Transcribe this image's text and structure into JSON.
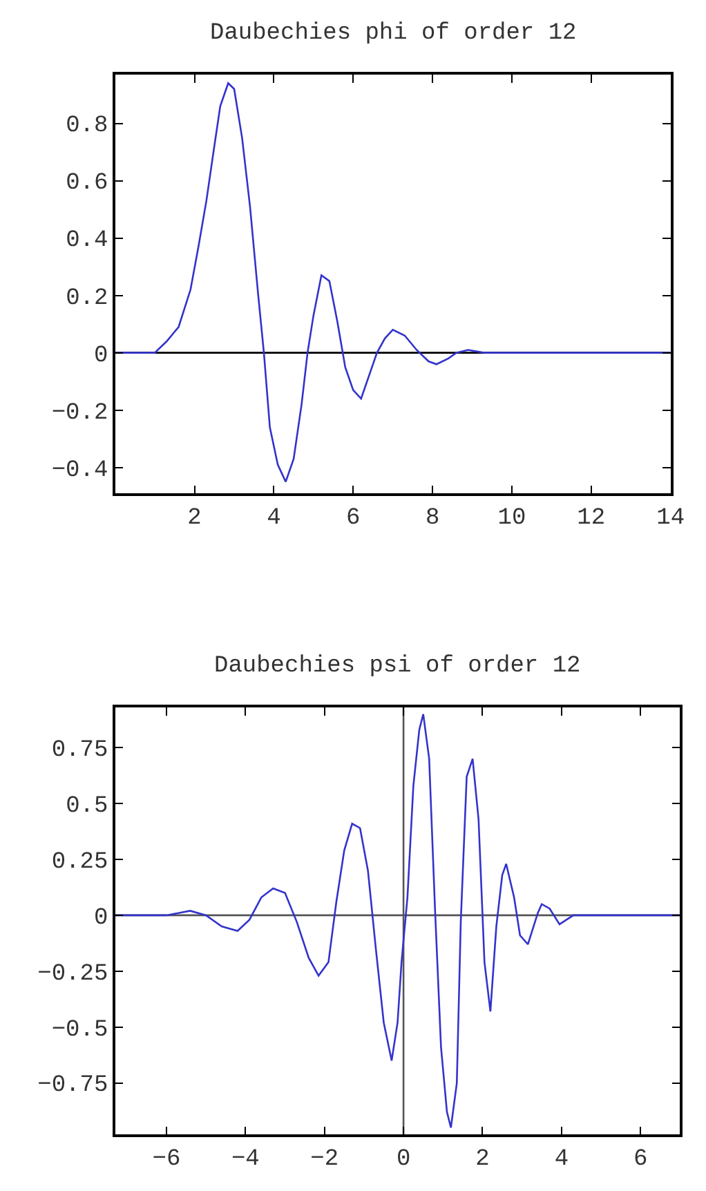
{
  "chart_data": [
    {
      "type": "line",
      "title": "Daubechies phi of order 12",
      "xlim": [
        0,
        14
      ],
      "xticks": [
        2,
        4,
        6,
        8,
        10,
        12,
        14
      ],
      "ylim": [
        -0.49,
        0.97
      ],
      "yticks": [
        -0.4,
        -0.2,
        0,
        0.2,
        0.4,
        0.6,
        0.8
      ],
      "grid": false,
      "ref_lines": [
        {
          "axis": "y",
          "value": 0,
          "color": "#000000"
        }
      ],
      "series": [
        {
          "color": "#3333cc",
          "x": [
            0,
            1.0,
            1.3,
            1.6,
            1.9,
            2.1,
            2.3,
            2.5,
            2.65,
            2.85,
            3.0,
            3.2,
            3.4,
            3.6,
            3.75,
            3.9,
            4.1,
            4.3,
            4.5,
            4.7,
            4.85,
            5.0,
            5.2,
            5.4,
            5.6,
            5.8,
            6.0,
            6.2,
            6.4,
            6.6,
            6.8,
            7.0,
            7.3,
            7.6,
            7.9,
            8.1,
            8.4,
            8.6,
            8.9,
            9.3,
            14
          ],
          "values": [
            0,
            0,
            0.04,
            0.09,
            0.22,
            0.37,
            0.53,
            0.72,
            0.86,
            0.94,
            0.92,
            0.75,
            0.51,
            0.21,
            0,
            -0.26,
            -0.39,
            -0.45,
            -0.37,
            -0.18,
            0,
            0.13,
            0.27,
            0.25,
            0.11,
            -0.05,
            -0.13,
            -0.16,
            -0.08,
            0,
            0.05,
            0.08,
            0.06,
            0.01,
            -0.03,
            -0.04,
            -0.02,
            0,
            0.01,
            0,
            0
          ]
        }
      ]
    },
    {
      "type": "line",
      "title": "Daubechies psi of order 12",
      "xlim": [
        -7.3,
        7
      ],
      "xticks": [
        -6,
        -4,
        -2,
        0,
        2,
        4,
        6
      ],
      "ylim": [
        -0.98,
        0.93
      ],
      "yticks": [
        -0.75,
        -0.5,
        -0.25,
        0,
        0.25,
        0.5,
        0.75
      ],
      "grid": false,
      "ref_lines": [
        {
          "axis": "y",
          "value": 0,
          "color": "#555555"
        },
        {
          "axis": "x",
          "value": 0,
          "color": "#555555"
        }
      ],
      "series": [
        {
          "color": "#3333cc",
          "x": [
            -7.3,
            -6.0,
            -5.4,
            -5.0,
            -4.6,
            -4.2,
            -3.9,
            -3.6,
            -3.3,
            -3.0,
            -2.7,
            -2.4,
            -2.15,
            -1.9,
            -1.7,
            -1.5,
            -1.3,
            -1.1,
            -0.9,
            -0.7,
            -0.5,
            -0.3,
            -0.15,
            -0.05,
            0.1,
            0.25,
            0.4,
            0.5,
            0.65,
            0.8,
            0.95,
            1.1,
            1.2,
            1.35,
            1.45,
            1.6,
            1.75,
            1.9,
            2.05,
            2.2,
            2.35,
            2.5,
            2.6,
            2.8,
            2.95,
            3.15,
            3.4,
            3.5,
            3.7,
            3.95,
            4.3,
            7
          ],
          "values": [
            0,
            0,
            0.02,
            0,
            -0.05,
            -0.07,
            -0.02,
            0.08,
            0.12,
            0.1,
            -0.03,
            -0.19,
            -0.27,
            -0.21,
            0.06,
            0.29,
            0.41,
            0.39,
            0.2,
            -0.15,
            -0.48,
            -0.65,
            -0.48,
            -0.21,
            0.08,
            0.58,
            0.83,
            0.9,
            0.7,
            0.02,
            -0.59,
            -0.88,
            -0.95,
            -0.75,
            -0.03,
            0.62,
            0.7,
            0.43,
            -0.21,
            -0.43,
            -0.05,
            0.18,
            0.23,
            0.08,
            -0.09,
            -0.13,
            0.01,
            0.05,
            0.03,
            -0.04,
            0,
            0
          ]
        }
      ]
    }
  ]
}
